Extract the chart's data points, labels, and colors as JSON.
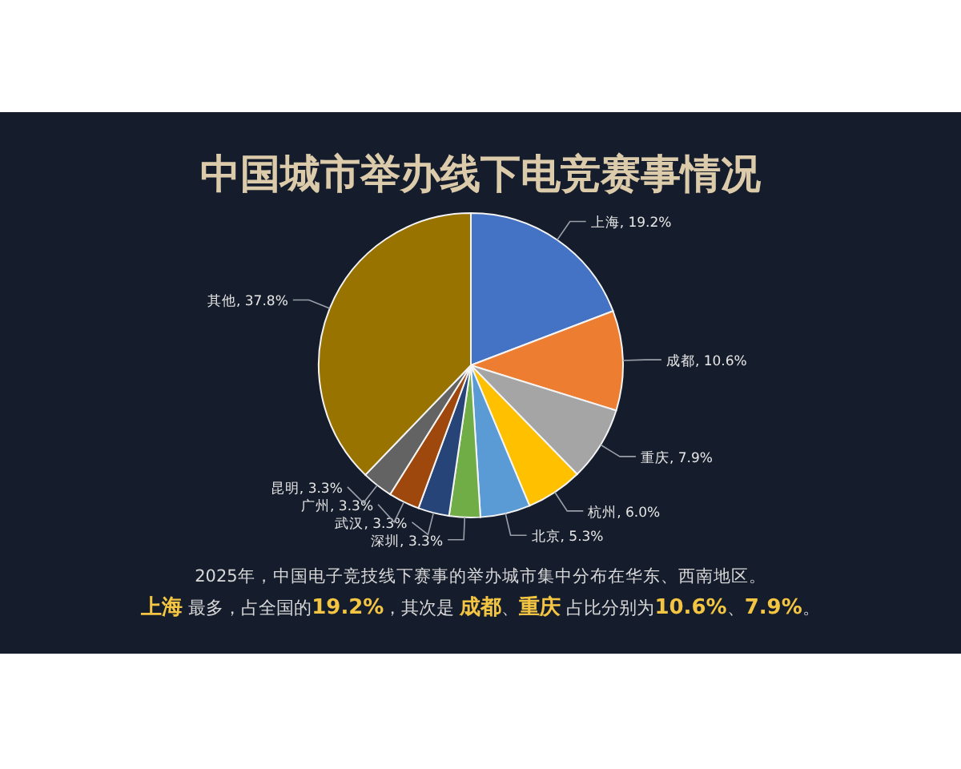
{
  "chart_data": {
    "type": "pie",
    "title": "中国城市举办线下电竞赛事情况",
    "categories": [
      "上海",
      "成都",
      "重庆",
      "杭州",
      "北京",
      "深圳",
      "武汉",
      "广州",
      "昆明",
      "其他"
    ],
    "values": [
      19.2,
      10.6,
      7.9,
      6.0,
      5.3,
      3.3,
      3.3,
      3.3,
      3.3,
      37.8
    ],
    "colors": [
      "#4472c4",
      "#ed7d31",
      "#a5a5a5",
      "#ffc000",
      "#5b9bd5",
      "#70ad47",
      "#264478",
      "#9e480e",
      "#636363",
      "#997300"
    ],
    "value_labels": [
      ", 19.2%",
      ", 10.6%",
      ", 7.9%",
      ", 6.0%",
      ", 5.3%",
      ", 3.3%",
      ", 3.3%",
      ", 3.3%",
      ", 3.3%",
      ", 37.8%"
    ],
    "annotations": [
      "2025年，中国电子竞技线下赛事的举办城市集中分布在华东、西南地区。",
      "**上海** 最多，占全国的**19.2%**，其次是 **成都**、**重庆** 占比分别为**10.6%**、**7.9%**。"
    ]
  }
}
